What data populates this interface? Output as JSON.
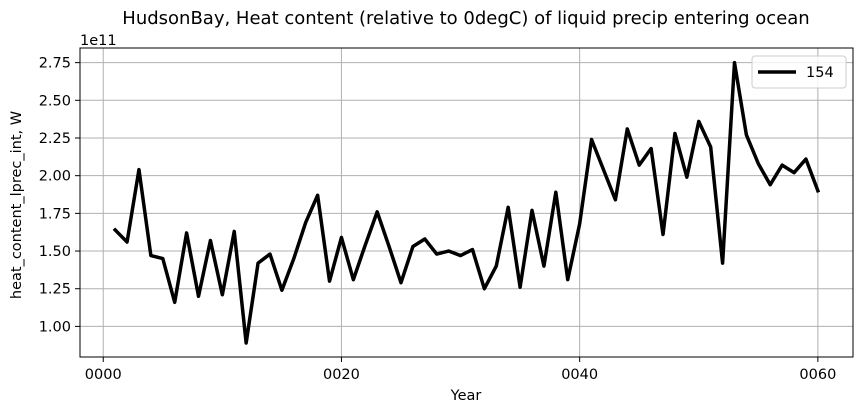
{
  "chart_data": {
    "type": "line",
    "title": "HudsonBay, Heat content (relative to 0degC) of liquid precip entering ocean",
    "xlabel": "Year",
    "ylabel": "heat_content_lprec_int, W",
    "y_exponent_label": "1e11",
    "xlim": [
      -1.95,
      62.95
    ],
    "ylim": [
      0.797,
      2.847
    ],
    "x_ticks": [
      0,
      20,
      40,
      60
    ],
    "x_tick_labels": [
      "0000",
      "0020",
      "0040",
      "0060"
    ],
    "y_ticks": [
      1.0,
      1.25,
      1.5,
      1.75,
      2.0,
      2.25,
      2.5,
      2.75
    ],
    "y_tick_labels": [
      "1.00",
      "1.25",
      "1.50",
      "1.75",
      "2.00",
      "2.25",
      "2.50",
      "2.75"
    ],
    "grid": true,
    "legend_position": "top-right",
    "series": [
      {
        "name": "154",
        "color": "#000000",
        "x": [
          1,
          2,
          3,
          4,
          5,
          6,
          7,
          8,
          9,
          10,
          11,
          12,
          13,
          14,
          15,
          16,
          17,
          18,
          19,
          20,
          21,
          22,
          23,
          24,
          25,
          26,
          27,
          28,
          29,
          30,
          31,
          32,
          33,
          34,
          35,
          36,
          37,
          38,
          39,
          40,
          41,
          42,
          43,
          44,
          45,
          46,
          47,
          48,
          49,
          50,
          51,
          52,
          53,
          54,
          55,
          56,
          57,
          58,
          59,
          60
        ],
        "values": [
          1.64,
          1.56,
          2.04,
          1.47,
          1.45,
          1.16,
          1.62,
          1.2,
          1.57,
          1.21,
          1.63,
          0.89,
          1.42,
          1.48,
          1.24,
          1.45,
          1.69,
          1.87,
          1.3,
          1.59,
          1.31,
          1.54,
          1.76,
          1.53,
          1.29,
          1.53,
          1.58,
          1.48,
          1.5,
          1.47,
          1.51,
          1.25,
          1.4,
          1.79,
          1.26,
          1.77,
          1.4,
          1.89,
          1.31,
          1.68,
          2.24,
          2.04,
          1.84,
          2.31,
          2.07,
          2.18,
          1.61,
          2.28,
          1.99,
          2.36,
          2.19,
          1.42,
          2.75,
          2.27,
          2.08,
          1.94,
          2.07,
          2.02,
          2.11,
          1.9
        ]
      }
    ]
  }
}
